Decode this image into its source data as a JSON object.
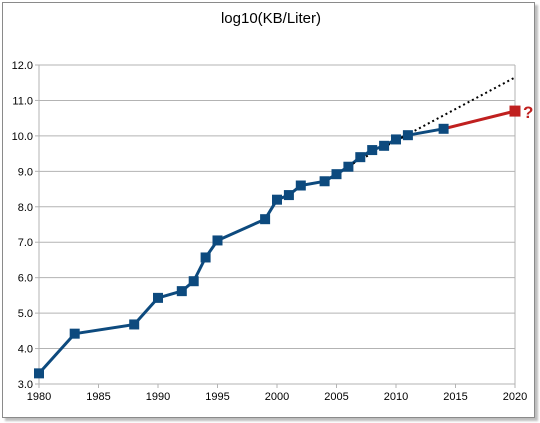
{
  "chart_data": {
    "type": "line",
    "title": "log10(KB/Liter)",
    "xlabel": "",
    "ylabel": "",
    "xlim": [
      1980,
      2020
    ],
    "ylim": [
      3.0,
      12.0
    ],
    "x_ticks": [
      1980,
      1985,
      1990,
      1995,
      2000,
      2005,
      2010,
      2015,
      2020
    ],
    "y_ticks": [
      "3.0",
      "4.0",
      "5.0",
      "6.0",
      "7.0",
      "8.0",
      "9.0",
      "10.0",
      "11.0",
      "12.0"
    ],
    "grid": "horizontal",
    "series": [
      {
        "style": "line-with-square-markers",
        "color": "#0d4a7e",
        "x": [
          1980,
          1983,
          1988,
          1990,
          1992,
          1993,
          1994,
          1995,
          1999,
          2000,
          2001,
          2002,
          2004,
          2005,
          2006,
          2007,
          2008,
          2009,
          2010,
          2011,
          2014
        ],
        "y": [
          3.3,
          4.42,
          4.68,
          5.43,
          5.62,
          5.9,
          6.57,
          7.05,
          7.65,
          8.2,
          8.33,
          8.6,
          8.72,
          8.92,
          9.13,
          9.4,
          9.6,
          9.72,
          9.9,
          10.02,
          10.2
        ]
      },
      {
        "style": "projection",
        "color": "#c0201f",
        "x": [
          2014,
          2020
        ],
        "y": [
          10.2,
          10.7
        ]
      },
      {
        "style": "dotted-trend",
        "color": "#000000",
        "x": [
          2006,
          2020
        ],
        "y": [
          9.15,
          11.65
        ]
      }
    ],
    "annotations": [
      {
        "text": "?",
        "x": 2020,
        "y": 10.7,
        "color": "#c0201f"
      }
    ]
  }
}
